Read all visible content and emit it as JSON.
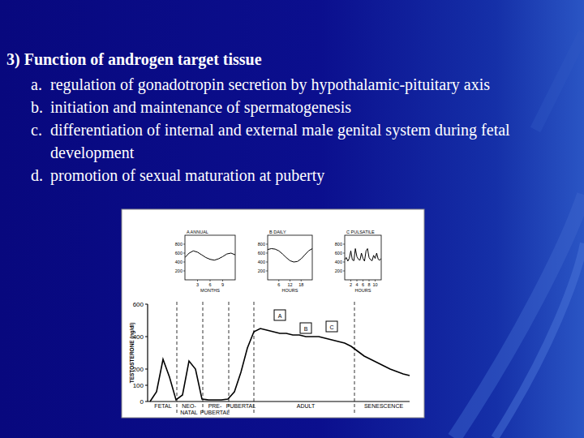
{
  "slide": {
    "heading": "3) Function of androgen target tissue",
    "items": [
      {
        "label": "a.",
        "text": "regulation of gonadotropin secretion by hypothalamic-pituitary axis"
      },
      {
        "label": "b.",
        "text": "initiation and maintenance of spermatogenesis"
      },
      {
        "label": "c.",
        "text": "differentiation of internal and external male genital system during fetal development"
      },
      {
        "label": "d.",
        "text": "promotion of sexual maturation at puberty"
      }
    ]
  },
  "chart_data": [
    {
      "type": "line",
      "y_label": "TESTOSTERONE (ng/dl)",
      "categories": [
        null,
        null,
        "FETAL",
        null,
        null,
        null,
        "NEO-NATAL",
        null,
        null,
        null,
        "PRE-PUBERTAL",
        null,
        null,
        null,
        "PUBERTAL",
        null,
        null,
        null,
        null,
        null,
        null,
        null,
        null,
        null,
        "ADULT",
        null,
        null,
        null,
        null,
        null,
        null,
        null,
        null,
        null,
        null,
        null,
        "SENESCENCE",
        null,
        null,
        null,
        null
      ],
      "values": [
        0,
        60,
        260,
        150,
        10,
        40,
        250,
        200,
        15,
        10,
        10,
        10,
        15,
        60,
        180,
        330,
        430,
        450,
        440,
        430,
        420,
        420,
        410,
        410,
        400,
        400,
        400,
        390,
        380,
        370,
        360,
        340,
        310,
        280,
        260,
        240,
        220,
        200,
        185,
        170,
        160
      ],
      "color": "#000000",
      "ylim": [
        0,
        600
      ],
      "yticks": [
        0,
        100,
        200,
        400,
        600
      ],
      "annotations": [
        "A",
        "B",
        "C"
      ]
    },
    {
      "type": "line",
      "title": "A ANNUAL",
      "x_label": "MONTHS",
      "x": [
        0,
        1,
        2,
        3,
        4,
        5,
        6,
        7,
        8,
        9,
        10,
        11,
        12
      ],
      "values": [
        500,
        600,
        650,
        620,
        560,
        500,
        460,
        440,
        470,
        520,
        580,
        600,
        560
      ],
      "color": "#000000",
      "xlim": [
        0,
        12
      ],
      "xticks": [
        3,
        6,
        9
      ],
      "ylim": [
        0,
        1000
      ],
      "yticks": [
        200,
        400,
        600,
        800
      ]
    },
    {
      "type": "line",
      "title": "B DAILY",
      "x_label": "HOURS",
      "x": [
        0,
        2,
        4,
        6,
        8,
        10,
        12,
        14,
        16,
        18,
        20,
        22,
        24
      ],
      "values": [
        680,
        700,
        690,
        650,
        580,
        500,
        430,
        400,
        410,
        470,
        560,
        650,
        700
      ],
      "color": "#000000",
      "xlim": [
        0,
        24
      ],
      "xticks": [
        6,
        12,
        18
      ],
      "ylim": [
        0,
        1000
      ],
      "yticks": [
        200,
        400,
        600,
        800
      ]
    },
    {
      "type": "line",
      "title": "C PULSATILE",
      "x_label": "HOURS",
      "x": [
        0,
        0.5,
        1,
        1.5,
        2,
        2.5,
        3,
        3.5,
        4,
        4.5,
        5,
        5.5,
        6,
        6.5,
        7,
        7.5,
        8,
        8.5,
        9,
        9.5,
        10,
        10.5,
        11,
        11.5,
        12
      ],
      "values": [
        450,
        500,
        420,
        480,
        650,
        450,
        430,
        700,
        520,
        460,
        440,
        600,
        480,
        420,
        650,
        700,
        500,
        450,
        430,
        550,
        480,
        600,
        460,
        440,
        480
      ],
      "color": "#000000",
      "xlim": [
        0,
        12
      ],
      "xticks": [
        2,
        4,
        6,
        8,
        10
      ],
      "ylim": [
        0,
        1000
      ],
      "yticks": [
        200,
        400,
        600,
        800
      ]
    }
  ]
}
